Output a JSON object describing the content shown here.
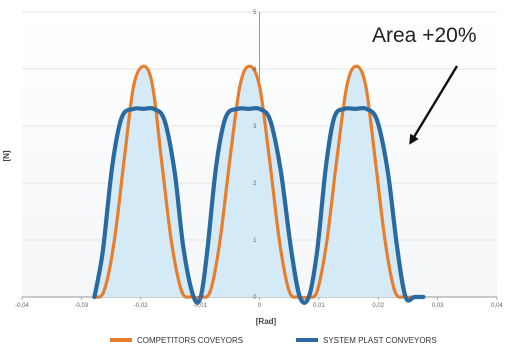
{
  "chart_data": {
    "type": "line",
    "xlabel": "[Rad]",
    "ylabel": "[N]",
    "xlim": [
      -0.04,
      0.04
    ],
    "ylim": [
      0,
      5
    ],
    "x_ticks": [
      "-0,04",
      "-0,03",
      "-0,02",
      "-0,01",
      "0",
      "0,01",
      "0,02",
      "0,03",
      "0,04"
    ],
    "y_ticks": [
      "0",
      "1",
      "2",
      "3",
      "4",
      "5"
    ],
    "grid": true,
    "legend_position": "bottom",
    "series": [
      {
        "name": "COMPETITORS COVEYORS",
        "color": "#e87d2c",
        "x": [
          -0.0278,
          -0.0262,
          -0.0245,
          -0.0228,
          -0.0212,
          -0.0195,
          -0.018,
          -0.0165,
          -0.0148,
          -0.0131,
          -0.0115,
          -0.0099,
          -0.0083,
          -0.0067,
          -0.005,
          -0.0033,
          -0.0017,
          0.0,
          0.0017,
          0.0034,
          0.005,
          0.0066,
          0.0082,
          0.0097,
          0.0113,
          0.013,
          0.0147,
          0.0163,
          0.0179,
          0.0195,
          0.0212,
          0.0228,
          0.0244,
          0.026,
          0.0276
        ],
        "values": [
          0.0,
          0.1,
          0.95,
          2.4,
          3.7,
          4.05,
          3.7,
          2.4,
          0.95,
          0.1,
          0.0,
          0.0,
          0.1,
          0.95,
          2.4,
          3.7,
          4.05,
          3.7,
          2.4,
          0.95,
          0.1,
          0.0,
          0.0,
          0.1,
          0.95,
          2.4,
          3.7,
          4.05,
          3.7,
          2.4,
          0.95,
          0.1,
          0.0,
          0.0,
          0.0
        ]
      },
      {
        "name": "SYSTEM PLAST CONVEYORS",
        "color": "#2a6aa0",
        "x": [
          -0.0278,
          -0.0264,
          -0.0248,
          -0.0232,
          -0.0212,
          -0.0195,
          -0.0178,
          -0.016,
          -0.0143,
          -0.0128,
          -0.0111,
          -0.0099,
          -0.0088,
          -0.0073,
          -0.0057,
          -0.0037,
          -0.0018,
          0.0,
          0.0018,
          0.0036,
          0.0053,
          0.0068,
          0.0083,
          0.0097,
          0.0112,
          0.0126,
          0.0143,
          0.0162,
          0.018,
          0.0198,
          0.0216,
          0.0232,
          0.0246,
          0.0261,
          0.0276
        ],
        "values": [
          0.0,
          0.8,
          2.3,
          3.15,
          3.3,
          3.3,
          3.3,
          3.1,
          2.2,
          0.85,
          0.0,
          0.0,
          0.8,
          2.3,
          3.15,
          3.3,
          3.3,
          3.3,
          3.1,
          2.2,
          0.85,
          0.0,
          0.0,
          0.8,
          2.3,
          3.15,
          3.3,
          3.3,
          3.3,
          3.1,
          2.2,
          0.85,
          0.0,
          0.0,
          0.0
        ]
      }
    ],
    "annotations": [
      {
        "text": "Area +20%",
        "arrow_to": [
          0.0254,
          2.7
        ]
      }
    ]
  }
}
